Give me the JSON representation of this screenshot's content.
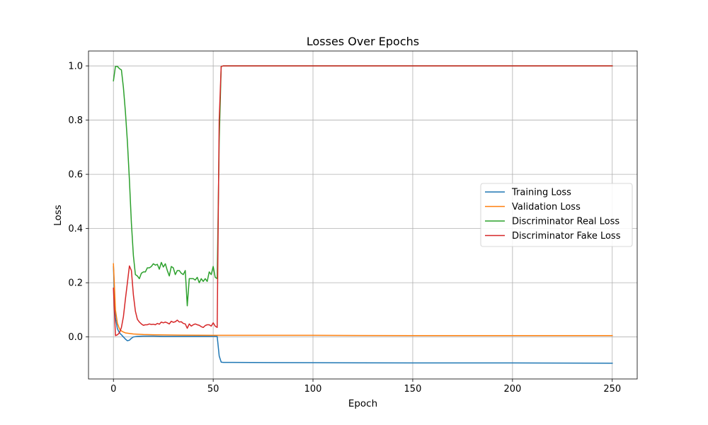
{
  "chart_data": {
    "type": "line",
    "title": "Losses Over Epochs",
    "xlabel": "Epoch",
    "ylabel": "Loss",
    "xlim": [
      -12.5,
      262.5
    ],
    "ylim": [
      -0.155,
      1.055
    ],
    "xticks": [
      0,
      50,
      100,
      150,
      200,
      250
    ],
    "xtick_labels": [
      "0",
      "50",
      "100",
      "150",
      "200",
      "250"
    ],
    "yticks": [
      0.0,
      0.2,
      0.4,
      0.6,
      0.8,
      1.0
    ],
    "ytick_labels": [
      "0.0",
      "0.2",
      "0.4",
      "0.6",
      "0.8",
      "1.0"
    ],
    "grid": true,
    "legend_position": "center-right",
    "series": [
      {
        "name": "Training Loss",
        "color": "#1f77b4",
        "points": [
          [
            0,
            0.26
          ],
          [
            1,
            0.07
          ],
          [
            2,
            0.03
          ],
          [
            3,
            0.015
          ],
          [
            4,
            0.008
          ],
          [
            5,
            0.0
          ],
          [
            6,
            -0.008
          ],
          [
            7,
            -0.014
          ],
          [
            8,
            -0.012
          ],
          [
            9,
            -0.005
          ],
          [
            10,
            0.0
          ],
          [
            12,
            0.002
          ],
          [
            15,
            0.003
          ],
          [
            20,
            0.003
          ],
          [
            25,
            0.002
          ],
          [
            30,
            0.002
          ],
          [
            35,
            0.002
          ],
          [
            40,
            0.002
          ],
          [
            45,
            0.002
          ],
          [
            50,
            0.002
          ],
          [
            52,
            0.002
          ],
          [
            53,
            -0.07
          ],
          [
            54,
            -0.093
          ],
          [
            55,
            -0.094
          ],
          [
            60,
            -0.094
          ],
          [
            100,
            -0.095
          ],
          [
            150,
            -0.096
          ],
          [
            200,
            -0.096
          ],
          [
            250,
            -0.097
          ]
        ]
      },
      {
        "name": "Validation Loss",
        "color": "#ff7f0e",
        "points": [
          [
            0,
            0.27
          ],
          [
            1,
            0.1
          ],
          [
            2,
            0.05
          ],
          [
            3,
            0.03
          ],
          [
            4,
            0.022
          ],
          [
            5,
            0.018
          ],
          [
            6,
            0.015
          ],
          [
            8,
            0.013
          ],
          [
            10,
            0.011
          ],
          [
            15,
            0.009
          ],
          [
            20,
            0.008
          ],
          [
            30,
            0.007
          ],
          [
            50,
            0.006
          ],
          [
            100,
            0.006
          ],
          [
            150,
            0.005
          ],
          [
            200,
            0.005
          ],
          [
            250,
            0.005
          ]
        ]
      },
      {
        "name": "Discriminator Real Loss",
        "color": "#2ca02c",
        "points": [
          [
            0,
            0.945
          ],
          [
            1,
            0.998
          ],
          [
            2,
            0.998
          ],
          [
            3,
            0.99
          ],
          [
            4,
            0.985
          ],
          [
            5,
            0.92
          ],
          [
            6,
            0.83
          ],
          [
            7,
            0.72
          ],
          [
            8,
            0.58
          ],
          [
            9,
            0.42
          ],
          [
            10,
            0.3
          ],
          [
            11,
            0.23
          ],
          [
            12,
            0.225
          ],
          [
            13,
            0.215
          ],
          [
            14,
            0.235
          ],
          [
            15,
            0.24
          ],
          [
            16,
            0.24
          ],
          [
            17,
            0.255
          ],
          [
            18,
            0.255
          ],
          [
            19,
            0.26
          ],
          [
            20,
            0.27
          ],
          [
            21,
            0.265
          ],
          [
            22,
            0.268
          ],
          [
            23,
            0.25
          ],
          [
            24,
            0.275
          ],
          [
            25,
            0.258
          ],
          [
            26,
            0.27
          ],
          [
            27,
            0.245
          ],
          [
            28,
            0.225
          ],
          [
            29,
            0.26
          ],
          [
            30,
            0.255
          ],
          [
            31,
            0.23
          ],
          [
            32,
            0.245
          ],
          [
            33,
            0.245
          ],
          [
            34,
            0.235
          ],
          [
            35,
            0.23
          ],
          [
            36,
            0.245
          ],
          [
            37,
            0.115
          ],
          [
            38,
            0.215
          ],
          [
            39,
            0.215
          ],
          [
            40,
            0.215
          ],
          [
            41,
            0.21
          ],
          [
            42,
            0.22
          ],
          [
            43,
            0.2
          ],
          [
            44,
            0.215
          ],
          [
            45,
            0.205
          ],
          [
            46,
            0.215
          ],
          [
            47,
            0.205
          ],
          [
            48,
            0.24
          ],
          [
            49,
            0.23
          ],
          [
            50,
            0.26
          ],
          [
            51,
            0.22
          ],
          [
            52,
            0.215
          ],
          [
            53,
            0.72
          ],
          [
            54,
            0.998
          ],
          [
            55,
            1.0
          ],
          [
            60,
            1.0
          ],
          [
            100,
            1.0
          ],
          [
            150,
            1.0
          ],
          [
            200,
            1.0
          ],
          [
            250,
            1.0
          ]
        ]
      },
      {
        "name": "Discriminator Fake Loss",
        "color": "#d62728",
        "points": [
          [
            0,
            0.18
          ],
          [
            1,
            0.005
          ],
          [
            2,
            0.008
          ],
          [
            3,
            0.015
          ],
          [
            4,
            0.035
          ],
          [
            5,
            0.075
          ],
          [
            6,
            0.14
          ],
          [
            7,
            0.2
          ],
          [
            8,
            0.262
          ],
          [
            9,
            0.245
          ],
          [
            10,
            0.155
          ],
          [
            11,
            0.095
          ],
          [
            12,
            0.065
          ],
          [
            13,
            0.055
          ],
          [
            14,
            0.048
          ],
          [
            15,
            0.043
          ],
          [
            16,
            0.045
          ],
          [
            17,
            0.045
          ],
          [
            18,
            0.048
          ],
          [
            19,
            0.046
          ],
          [
            20,
            0.047
          ],
          [
            21,
            0.045
          ],
          [
            22,
            0.05
          ],
          [
            23,
            0.047
          ],
          [
            24,
            0.055
          ],
          [
            25,
            0.052
          ],
          [
            26,
            0.055
          ],
          [
            27,
            0.052
          ],
          [
            28,
            0.048
          ],
          [
            29,
            0.058
          ],
          [
            30,
            0.054
          ],
          [
            31,
            0.056
          ],
          [
            32,
            0.062
          ],
          [
            33,
            0.055
          ],
          [
            34,
            0.056
          ],
          [
            35,
            0.05
          ],
          [
            36,
            0.048
          ],
          [
            37,
            0.032
          ],
          [
            38,
            0.048
          ],
          [
            39,
            0.04
          ],
          [
            40,
            0.045
          ],
          [
            41,
            0.048
          ],
          [
            42,
            0.045
          ],
          [
            43,
            0.043
          ],
          [
            44,
            0.038
          ],
          [
            45,
            0.035
          ],
          [
            46,
            0.042
          ],
          [
            47,
            0.045
          ],
          [
            48,
            0.045
          ],
          [
            49,
            0.04
          ],
          [
            50,
            0.052
          ],
          [
            51,
            0.04
          ],
          [
            52,
            0.035
          ],
          [
            53,
            0.8
          ],
          [
            54,
            0.998
          ],
          [
            55,
            1.0
          ],
          [
            60,
            1.0
          ],
          [
            100,
            1.0
          ],
          [
            150,
            1.0
          ],
          [
            200,
            1.0
          ],
          [
            250,
            1.0
          ]
        ]
      }
    ]
  }
}
